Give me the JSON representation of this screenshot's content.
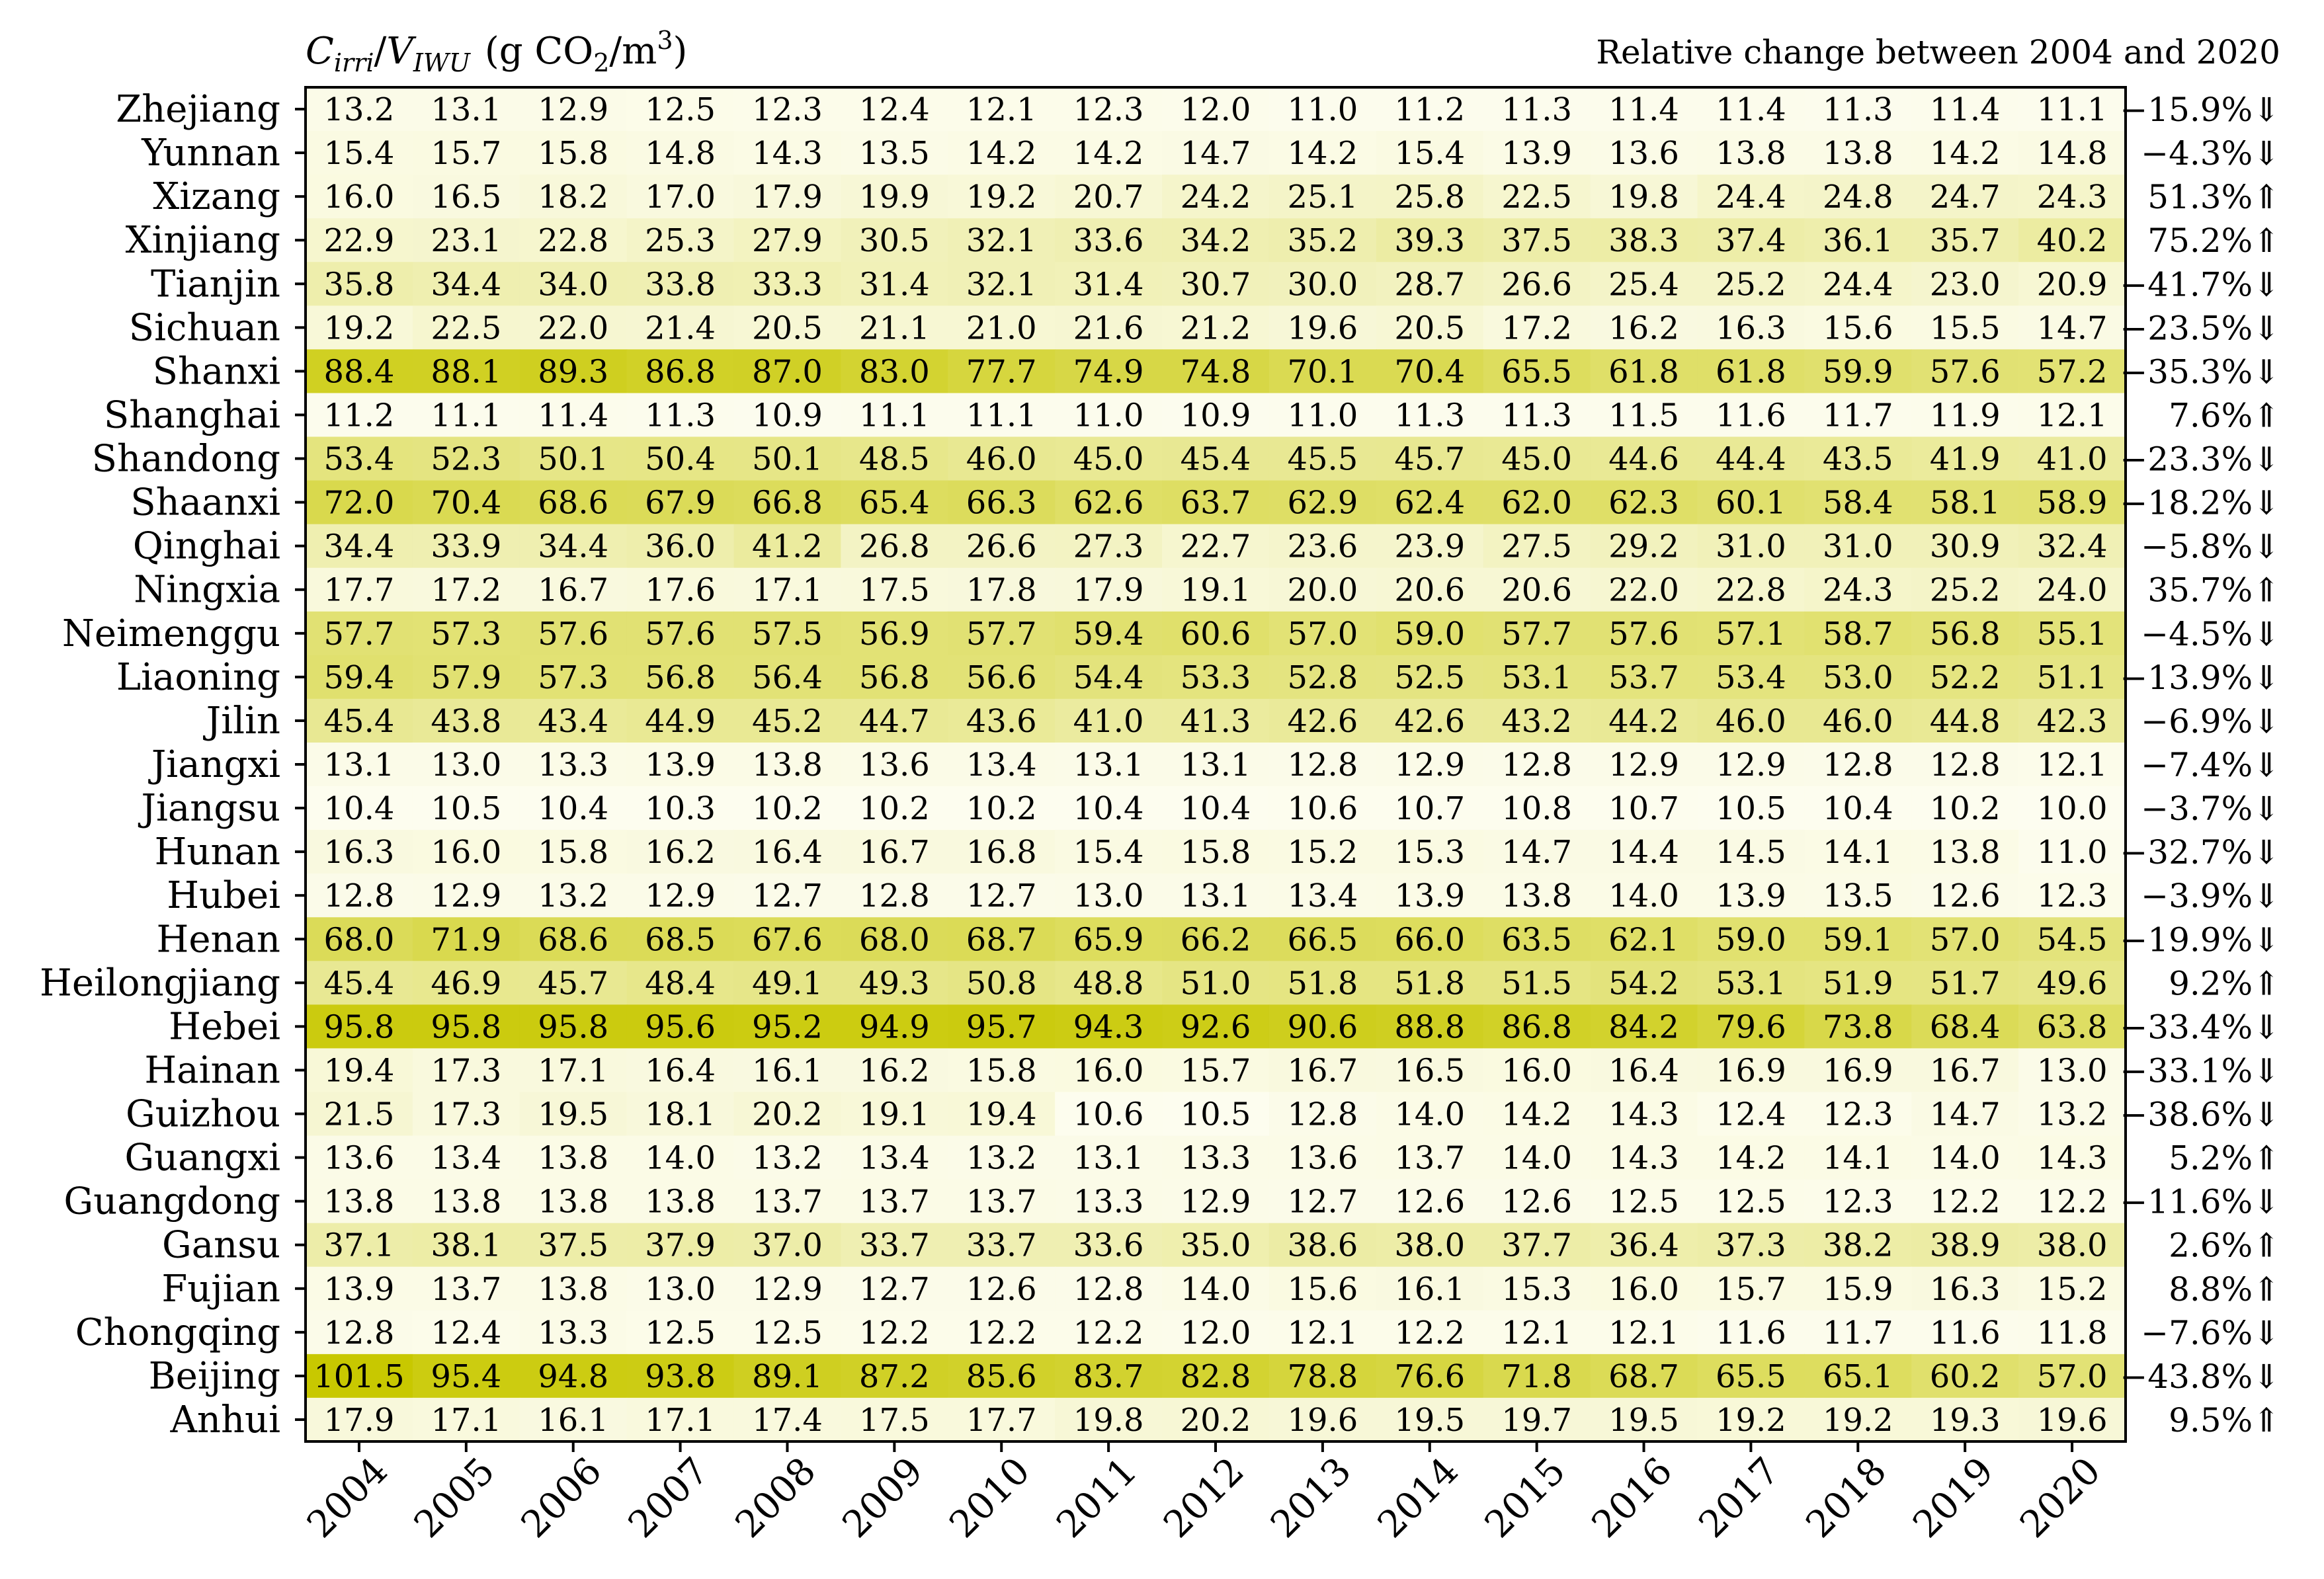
{
  "chart_data": {
    "type": "heatmap",
    "title_parts": {
      "c": "C",
      "c_sub": "irri",
      "slash": "/",
      "v": "V",
      "v_sub": "IWU",
      "unit_open": "(g CO",
      "unit_co2_sub": "2",
      "unit_mid": "/m",
      "unit_sup": "3",
      "unit_close": ")"
    },
    "title_text": "C_irri/V_IWU (g CO2/m3)",
    "change_header": "Relative change between 2004 and 2020",
    "years": [
      "2004",
      "2005",
      "2006",
      "2007",
      "2008",
      "2009",
      "2010",
      "2011",
      "2012",
      "2013",
      "2014",
      "2015",
      "2016",
      "2017",
      "2018",
      "2019",
      "2020"
    ],
    "provinces": [
      "Zhejiang",
      "Yunnan",
      "Xizang",
      "Xinjiang",
      "Tianjin",
      "Sichuan",
      "Shanxi",
      "Shanghai",
      "Shandong",
      "Shaanxi",
      "Qinghai",
      "Ningxia",
      "Neimenggu",
      "Liaoning",
      "Jilin",
      "Jiangxi",
      "Jiangsu",
      "Hunan",
      "Hubei",
      "Henan",
      "Heilongjiang",
      "Hebei",
      "Hainan",
      "Guizhou",
      "Guangxi",
      "Guangdong",
      "Gansu",
      "Fujian",
      "Chongqing",
      "Beijing",
      "Anhui"
    ],
    "values": [
      [
        13.2,
        13.1,
        12.9,
        12.5,
        12.3,
        12.4,
        12.1,
        12.3,
        12.0,
        11.0,
        11.2,
        11.3,
        11.4,
        11.4,
        11.3,
        11.4,
        11.1
      ],
      [
        15.4,
        15.7,
        15.8,
        14.8,
        14.3,
        13.5,
        14.2,
        14.2,
        14.7,
        14.2,
        15.4,
        13.9,
        13.6,
        13.8,
        13.8,
        14.2,
        14.8
      ],
      [
        16.0,
        16.5,
        18.2,
        17.0,
        17.9,
        19.9,
        19.2,
        20.7,
        24.2,
        25.1,
        25.8,
        22.5,
        19.8,
        24.4,
        24.8,
        24.7,
        24.3
      ],
      [
        22.9,
        23.1,
        22.8,
        25.3,
        27.9,
        30.5,
        32.1,
        33.6,
        34.2,
        35.2,
        39.3,
        37.5,
        38.3,
        37.4,
        36.1,
        35.7,
        40.2
      ],
      [
        35.8,
        34.4,
        34.0,
        33.8,
        33.3,
        31.4,
        32.1,
        31.4,
        30.7,
        30.0,
        28.7,
        26.6,
        25.4,
        25.2,
        24.4,
        23.0,
        20.9
      ],
      [
        19.2,
        22.5,
        22.0,
        21.4,
        20.5,
        21.1,
        21.0,
        21.6,
        21.2,
        19.6,
        20.5,
        17.2,
        16.2,
        16.3,
        15.6,
        15.5,
        14.7
      ],
      [
        88.4,
        88.1,
        89.3,
        86.8,
        87.0,
        83.0,
        77.7,
        74.9,
        74.8,
        70.1,
        70.4,
        65.5,
        61.8,
        61.8,
        59.9,
        57.6,
        57.2
      ],
      [
        11.2,
        11.1,
        11.4,
        11.3,
        10.9,
        11.1,
        11.1,
        11.0,
        10.9,
        11.0,
        11.3,
        11.3,
        11.5,
        11.6,
        11.7,
        11.9,
        12.1
      ],
      [
        53.4,
        52.3,
        50.1,
        50.4,
        50.1,
        48.5,
        46.0,
        45.0,
        45.4,
        45.5,
        45.7,
        45.0,
        44.6,
        44.4,
        43.5,
        41.9,
        41.0
      ],
      [
        72.0,
        70.4,
        68.6,
        67.9,
        66.8,
        65.4,
        66.3,
        62.6,
        63.7,
        62.9,
        62.4,
        62.0,
        62.3,
        60.1,
        58.4,
        58.1,
        58.9
      ],
      [
        34.4,
        33.9,
        34.4,
        36.0,
        41.2,
        26.8,
        26.6,
        27.3,
        22.7,
        23.6,
        23.9,
        27.5,
        29.2,
        31.0,
        31.0,
        30.9,
        32.4
      ],
      [
        17.7,
        17.2,
        16.7,
        17.6,
        17.1,
        17.5,
        17.8,
        17.9,
        19.1,
        20.0,
        20.6,
        20.6,
        22.0,
        22.8,
        24.3,
        25.2,
        24.0
      ],
      [
        57.7,
        57.3,
        57.6,
        57.6,
        57.5,
        56.9,
        57.7,
        59.4,
        60.6,
        57.0,
        59.0,
        57.7,
        57.6,
        57.1,
        58.7,
        56.8,
        55.1
      ],
      [
        59.4,
        57.9,
        57.3,
        56.8,
        56.4,
        56.8,
        56.6,
        54.4,
        53.3,
        52.8,
        52.5,
        53.1,
        53.7,
        53.4,
        53.0,
        52.2,
        51.1
      ],
      [
        45.4,
        43.8,
        43.4,
        44.9,
        45.2,
        44.7,
        43.6,
        41.0,
        41.3,
        42.6,
        42.6,
        43.2,
        44.2,
        46.0,
        46.0,
        44.8,
        42.3
      ],
      [
        13.1,
        13.0,
        13.3,
        13.9,
        13.8,
        13.6,
        13.4,
        13.1,
        13.1,
        12.8,
        12.9,
        12.8,
        12.9,
        12.9,
        12.8,
        12.8,
        12.1
      ],
      [
        10.4,
        10.5,
        10.4,
        10.3,
        10.2,
        10.2,
        10.2,
        10.4,
        10.4,
        10.6,
        10.7,
        10.8,
        10.7,
        10.5,
        10.4,
        10.2,
        10.0
      ],
      [
        16.3,
        16.0,
        15.8,
        16.2,
        16.4,
        16.7,
        16.8,
        15.4,
        15.8,
        15.2,
        15.3,
        14.7,
        14.4,
        14.5,
        14.1,
        13.8,
        11.0
      ],
      [
        12.8,
        12.9,
        13.2,
        12.9,
        12.7,
        12.8,
        12.7,
        13.0,
        13.1,
        13.4,
        13.9,
        13.8,
        14.0,
        13.9,
        13.5,
        12.6,
        12.3
      ],
      [
        68.0,
        71.9,
        68.6,
        68.5,
        67.6,
        68.0,
        68.7,
        65.9,
        66.2,
        66.5,
        66.0,
        63.5,
        62.1,
        59.0,
        59.1,
        57.0,
        54.5
      ],
      [
        45.4,
        46.9,
        45.7,
        48.4,
        49.1,
        49.3,
        50.8,
        48.8,
        51.0,
        51.8,
        51.8,
        51.5,
        54.2,
        53.1,
        51.9,
        51.7,
        49.6
      ],
      [
        95.8,
        95.8,
        95.8,
        95.6,
        95.2,
        94.9,
        95.7,
        94.3,
        92.6,
        90.6,
        88.8,
        86.8,
        84.2,
        79.6,
        73.8,
        68.4,
        63.8
      ],
      [
        19.4,
        17.3,
        17.1,
        16.4,
        16.1,
        16.2,
        15.8,
        16.0,
        15.7,
        16.7,
        16.5,
        16.0,
        16.4,
        16.9,
        16.9,
        16.7,
        13.0
      ],
      [
        21.5,
        17.3,
        19.5,
        18.1,
        20.2,
        19.1,
        19.4,
        10.6,
        10.5,
        12.8,
        14.0,
        14.2,
        14.3,
        12.4,
        12.3,
        14.7,
        13.2
      ],
      [
        13.6,
        13.4,
        13.8,
        14.0,
        13.2,
        13.4,
        13.2,
        13.1,
        13.3,
        13.6,
        13.7,
        14.0,
        14.3,
        14.2,
        14.1,
        14.0,
        14.3
      ],
      [
        13.8,
        13.8,
        13.8,
        13.8,
        13.7,
        13.7,
        13.7,
        13.3,
        12.9,
        12.7,
        12.6,
        12.6,
        12.5,
        12.5,
        12.3,
        12.2,
        12.2
      ],
      [
        37.1,
        38.1,
        37.5,
        37.9,
        37.0,
        33.7,
        33.7,
        33.6,
        35.0,
        38.6,
        38.0,
        37.7,
        36.4,
        37.3,
        38.2,
        38.9,
        38.0
      ],
      [
        13.9,
        13.7,
        13.8,
        13.0,
        12.9,
        12.7,
        12.6,
        12.8,
        14.0,
        15.6,
        16.1,
        15.3,
        16.0,
        15.7,
        15.9,
        16.3,
        15.2
      ],
      [
        12.8,
        12.4,
        13.3,
        12.5,
        12.5,
        12.2,
        12.2,
        12.2,
        12.0,
        12.1,
        12.2,
        12.1,
        12.1,
        11.6,
        11.7,
        11.6,
        11.8
      ],
      [
        101.5,
        95.4,
        94.8,
        93.8,
        89.1,
        87.2,
        85.6,
        83.7,
        82.8,
        78.8,
        76.6,
        71.8,
        68.7,
        65.5,
        65.1,
        60.2,
        57.0
      ],
      [
        17.9,
        17.1,
        16.1,
        17.1,
        17.4,
        17.5,
        17.7,
        19.8,
        20.2,
        19.6,
        19.5,
        19.7,
        19.5,
        19.2,
        19.2,
        19.3,
        19.6
      ]
    ],
    "relative_change": [
      "−15.9%⇓",
      "−4.3%⇓",
      "51.3%⇑",
      "75.2%⇑",
      "−41.7%⇓",
      "−23.5%⇓",
      "−35.3%⇓",
      "7.6%⇑",
      "−23.3%⇓",
      "−18.2%⇓",
      "−5.8%⇓",
      "35.7%⇑",
      "−4.5%⇓",
      "−13.9%⇓",
      "−6.9%⇓",
      "−7.4%⇓",
      "−3.7%⇓",
      "−32.7%⇓",
      "−3.9%⇓",
      "−19.9%⇓",
      "9.2%⇑",
      "−33.4%⇓",
      "−33.1%⇓",
      "−38.6%⇓",
      "5.2%⇑",
      "−11.6%⇓",
      "2.6%⇑",
      "8.8%⇑",
      "−7.6%⇓",
      "−43.8%⇓",
      "9.5%⇑"
    ],
    "value_range": [
      10.0,
      101.5
    ],
    "colors": {
      "low": "#fdfdf0",
      "high": "#c8c800",
      "border": "#000000"
    },
    "grid": false
  }
}
